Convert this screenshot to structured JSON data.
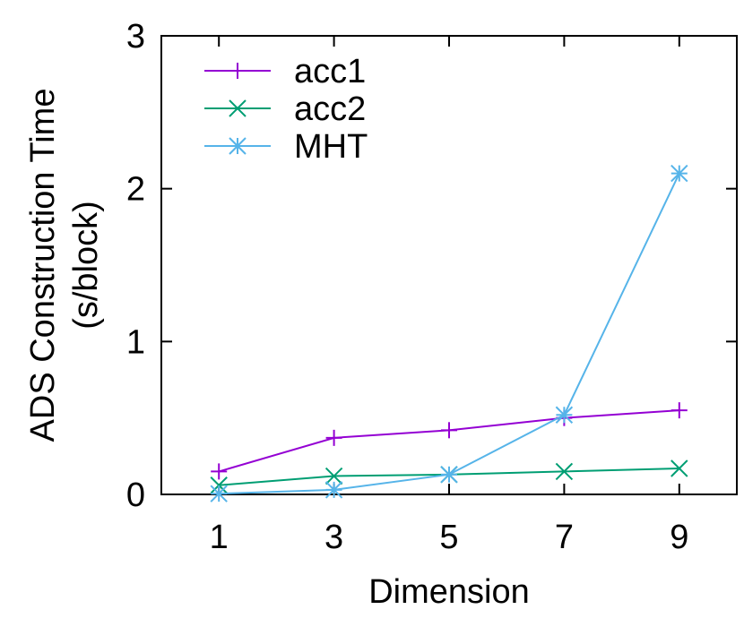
{
  "chart_data": {
    "type": "line",
    "title": "",
    "xlabel": "Dimension",
    "ylabel_lines": [
      "ADS Construction Time",
      "(s/block)"
    ],
    "x": [
      1,
      3,
      5,
      7,
      9
    ],
    "xticks": [
      "1",
      "3",
      "5",
      "7",
      "9"
    ],
    "ylim": [
      0,
      3
    ],
    "yticks": [
      "0",
      "1",
      "2",
      "3"
    ],
    "grid": false,
    "legend_position": "top-left",
    "series": [
      {
        "name": "acc1",
        "values": [
          0.15,
          0.37,
          0.42,
          0.5,
          0.55
        ],
        "color": "#9400d3",
        "marker": "plus"
      },
      {
        "name": "acc2",
        "values": [
          0.06,
          0.12,
          0.13,
          0.15,
          0.17
        ],
        "color": "#009e73",
        "marker": "cross"
      },
      {
        "name": "MHT",
        "values": [
          0.005,
          0.03,
          0.13,
          0.52,
          2.1
        ],
        "color": "#56b4e9",
        "marker": "star"
      }
    ]
  }
}
